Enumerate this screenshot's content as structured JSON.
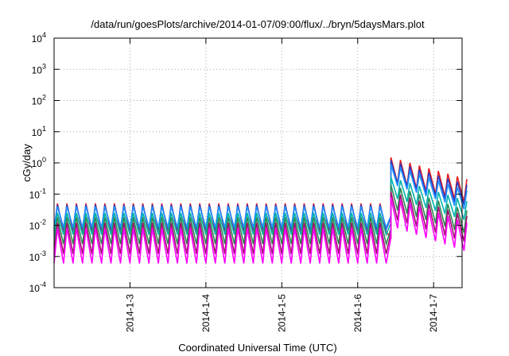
{
  "chart_data": {
    "type": "line",
    "title": "/data/run/goesPlots/archive/2014-01-07/09:00/flux/../bryn/5daysMars.plot",
    "xlabel": "Coordinated Universal Time (UTC)",
    "ylabel": "cGy/day",
    "yscale": "log",
    "ylim": [
      0.0001,
      10000
    ],
    "xlim": [
      "2014-01-02T00:00",
      "2014-01-07T09:00"
    ],
    "grid": true,
    "legend": "none",
    "x_tick_labels": [
      {
        "label": "2014-1-3",
        "x": "2014-01-03T00:00"
      },
      {
        "label": "2014-1-4",
        "x": "2014-01-04T00:00"
      },
      {
        "label": "2014-1-5",
        "x": "2014-01-05T00:00"
      },
      {
        "label": "2014-1-6",
        "x": "2014-01-06T00:00"
      },
      {
        "label": "2014-1-7",
        "x": "2014-01-07T00:00"
      }
    ],
    "y_tick_labels": [
      {
        "base": "10",
        "exp": "-4",
        "value": 0.0001
      },
      {
        "base": "10",
        "exp": "-3",
        "value": 0.001
      },
      {
        "base": "10",
        "exp": "-2",
        "value": 0.01
      },
      {
        "base": "10",
        "exp": "-1",
        "value": 0.1
      },
      {
        "base": "10",
        "exp": "0",
        "value": 1
      },
      {
        "base": "10",
        "exp": "1",
        "value": 10
      },
      {
        "base": "10",
        "exp": "2",
        "value": 100
      },
      {
        "base": "10",
        "exp": "3",
        "value": 1000
      },
      {
        "base": "10",
        "exp": "4",
        "value": 10000
      }
    ],
    "series_pattern": {
      "description": "periodic sawtooth, ~8 peaks per day",
      "quiet_period": [
        "2014-01-02T00:00",
        "2014-01-06T09:00"
      ],
      "dip": [
        "2014-01-06T09:00",
        "2014-01-06T10:30"
      ],
      "event_onset": "2014-01-06T10:30",
      "event_end": "2014-01-07T09:00"
    },
    "series": [
      {
        "color": "#e31a1c",
        "quiet_peak": 0.05,
        "quiet_trough": 0.006,
        "dip_level": 0.004,
        "event_peak": 1.5,
        "event_end_peak": 0.3,
        "event_trough_ratio": 0.15
      },
      {
        "color": "#2b3ec9",
        "quiet_peak": 0.045,
        "quiet_trough": 0.0075,
        "dip_level": 0.018,
        "event_peak": 1.2,
        "event_end_peak": 0.2,
        "event_trough_ratio": 0.18
      },
      {
        "color": "#1e90ff",
        "quiet_peak": 0.04,
        "quiet_trough": 0.0085,
        "dip_level": 0.02,
        "event_peak": 0.9,
        "event_end_peak": 0.13,
        "event_trough_ratio": 0.2
      },
      {
        "color": "#00b3ad",
        "quiet_peak": 0.025,
        "quiet_trough": 0.005,
        "dip_level": 0.012,
        "event_peak": 0.35,
        "event_end_peak": 0.06,
        "event_trough_ratio": 0.2
      },
      {
        "color": "#2e8b57",
        "quiet_peak": 0.018,
        "quiet_trough": 0.0025,
        "dip_level": 0.008,
        "event_peak": 0.2,
        "event_end_peak": 0.03,
        "event_trough_ratio": 0.15
      },
      {
        "color": "#a01070",
        "quiet_peak": 0.012,
        "quiet_trough": 0.0012,
        "dip_level": 0.006,
        "event_peak": 0.12,
        "event_end_peak": 0.02,
        "event_trough_ratio": 0.12
      },
      {
        "color": "#ff00ff",
        "quiet_peak": 0.008,
        "quiet_trough": 0.0006,
        "dip_level": 0.004,
        "event_peak": 0.08,
        "event_end_peak": 0.012,
        "event_trough_ratio": 0.1
      }
    ]
  }
}
